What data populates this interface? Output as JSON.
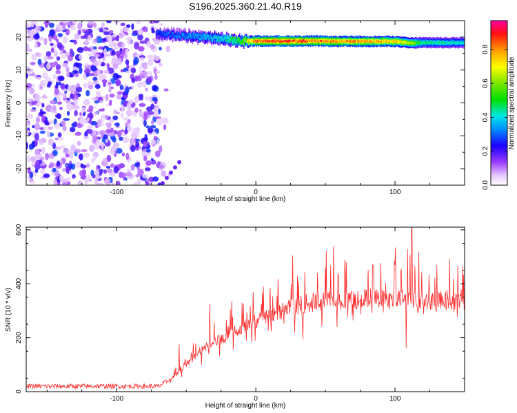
{
  "title": "S196.2025.360.21.40.R19",
  "chart_data": [
    {
      "type": "heatmap",
      "xlabel": "Height of straight line (km)",
      "ylabel": "Frequency (Hz)",
      "xlim": [
        -165,
        150
      ],
      "ylim": [
        -25,
        25
      ],
      "xticks": [
        -100,
        0,
        100
      ],
      "yticks": [
        20,
        10,
        0,
        -10,
        -20
      ],
      "colorbar": {
        "label": "Normalized spectral amplitude",
        "range": [
          0.0,
          0.97
        ],
        "ticks": [
          0.0,
          0.2,
          0.4,
          0.6,
          0.8
        ]
      },
      "ridge": {
        "description_values": {
          "x": [
            -70,
            -55,
            -40,
            -25,
            -10,
            0,
            20,
            40,
            60,
            80,
            100,
            110,
            120,
            150
          ],
          "freq": [
            21,
            20.5,
            20,
            19.5,
            18.8,
            18.8,
            18.8,
            18.8,
            18.7,
            18.7,
            18.7,
            18.2,
            18.3,
            18.3
          ],
          "amplitude": [
            0.3,
            0.35,
            0.4,
            0.45,
            0.6,
            0.9,
            0.95,
            0.9,
            0.85,
            0.85,
            0.8,
            0.7,
            0.5,
            0.45
          ]
        }
      },
      "noise_region_x": [
        -165,
        -70
      ],
      "noise_amplitude": [
        0.05,
        0.3
      ]
    },
    {
      "type": "line",
      "xlabel": "Height of straight line (km)",
      "ylabel": "SNR (10 * v/v)",
      "xlim": [
        -165,
        150
      ],
      "ylim": [
        0,
        610
      ],
      "xticks": [
        -100,
        0,
        100
      ],
      "yticks": [
        0,
        200,
        400,
        600
      ],
      "color": "#ff2a2a",
      "baseline": {
        "x": [
          -165,
          -70,
          -60,
          -50,
          -40,
          -30,
          -20,
          -10,
          0,
          10,
          20,
          30,
          40,
          60,
          80,
          100,
          110,
          120,
          150
        ],
        "y": [
          20,
          20,
          50,
          100,
          150,
          180,
          210,
          240,
          260,
          280,
          300,
          320,
          330,
          340,
          345,
          350,
          345,
          340,
          335
        ]
      },
      "spikes": [
        {
          "x": -55,
          "y": 175
        },
        {
          "x": -45,
          "y": 180
        },
        {
          "x": -33,
          "y": 325
        },
        {
          "x": -20,
          "y": 240
        },
        {
          "x": -10,
          "y": 330
        },
        {
          "x": -2,
          "y": 370
        },
        {
          "x": 10,
          "y": 350
        },
        {
          "x": 30,
          "y": 430
        },
        {
          "x": 50,
          "y": 460
        },
        {
          "x": 65,
          "y": 480
        },
        {
          "x": 84,
          "y": 470
        },
        {
          "x": 100,
          "y": 470
        },
        {
          "x": 112,
          "y": 610
        },
        {
          "x": 108,
          "y": 160
        },
        {
          "x": 130,
          "y": 470
        },
        {
          "x": 145,
          "y": 465
        }
      ]
    }
  ]
}
